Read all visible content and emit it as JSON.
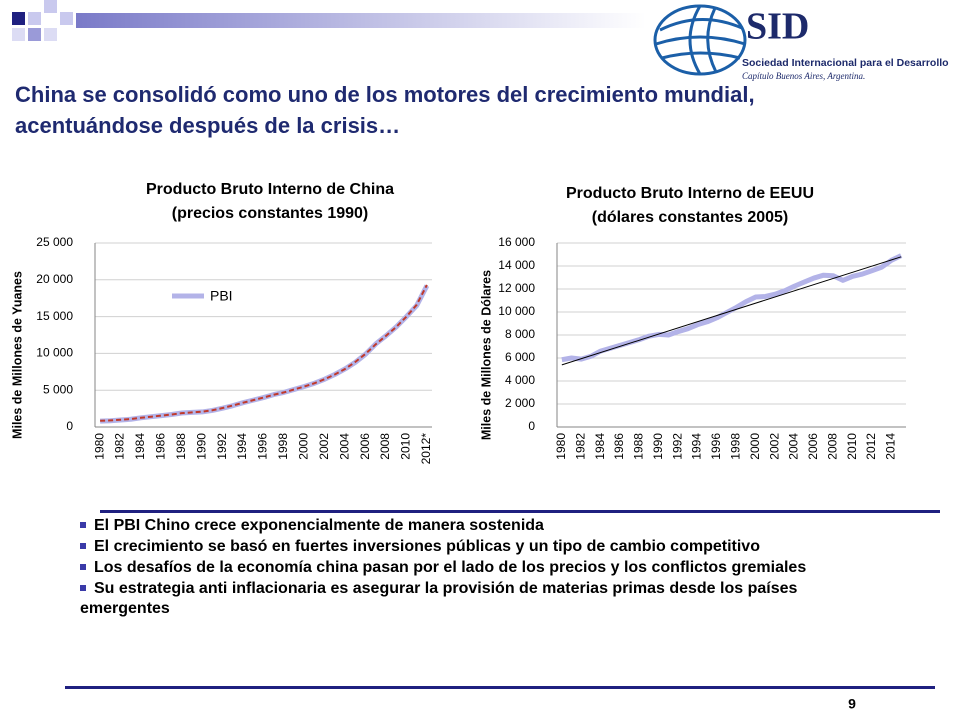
{
  "slide_title": [
    "China se consolidó como uno de los motores del crecimiento mundial,",
    "acentuándose después de la crisis…"
  ],
  "logo": {
    "name": "SID",
    "full_name": "Sociedad Internacional para el Desarrollo",
    "chapter": "Capítulo Buenos Aires, Argentina."
  },
  "bullets": [
    "El PBI Chino crece exponencialmente de manera sostenida",
    "El crecimiento se basó en fuertes inversiones públicas y un tipo de cambio competitivo",
    "Los desafíos de la economía china pasan por el lado de los precios y los conflictos gremiales",
    "Su estrategia anti inflacionaria es asegurar la provisión de materias primas desde los países emergentes"
  ],
  "page_number": "9",
  "chart_data": [
    {
      "type": "line",
      "title": "Producto Bruto Interno de China",
      "subtitle": "(precios constantes 1990)",
      "y_label": "Miles de Millones de Yuanes",
      "categories": [
        "1980",
        null,
        "1982",
        null,
        "1984",
        null,
        "1986",
        null,
        "1988",
        null,
        "1990",
        null,
        "1992",
        null,
        "1994",
        null,
        "1996",
        null,
        "1998",
        null,
        "2000",
        null,
        "2002",
        null,
        "2004",
        null,
        "2006",
        null,
        "2008",
        null,
        "2010",
        null,
        "2012*"
      ],
      "series": [
        {
          "name": "PBI",
          "color": "#b3b3e8",
          "values": [
            800,
            850,
            950,
            1050,
            1250,
            1400,
            1550,
            1700,
            1900,
            1980,
            2050,
            2250,
            2550,
            2900,
            3300,
            3650,
            4000,
            4400,
            4700,
            5100,
            5500,
            5950,
            6500,
            7150,
            7900,
            8800,
            9900,
            11300,
            12400,
            13600,
            15000,
            16500,
            19200
          ]
        }
      ],
      "trendline": {
        "color": "#c0392b",
        "dashed": true,
        "values": [
          850,
          900,
          980,
          1080,
          1250,
          1400,
          1550,
          1700,
          1880,
          1980,
          2080,
          2280,
          2580,
          2920,
          3300,
          3650,
          4000,
          4380,
          4700,
          5100,
          5500,
          5950,
          6500,
          7150,
          7900,
          8850,
          9950,
          11250,
          12400,
          13600,
          15000,
          16600,
          19300
        ]
      },
      "ylim": [
        0,
        25000
      ],
      "yticks": [
        0,
        {
          "value": 5000,
          "label": "5 000"
        },
        {
          "value": 10000,
          "label": "10 000"
        },
        {
          "value": 15000,
          "label": "15 000"
        },
        {
          "value": 20000,
          "label": "20 000"
        },
        {
          "value": 25000,
          "label": "25 000"
        }
      ],
      "grid": true,
      "legend": "upper left"
    },
    {
      "type": "line",
      "title": "Producto Bruto Interno de EEUU",
      "subtitle": "(dólares constantes 2005)",
      "y_label": "Miles de Millones de Dólares",
      "categories": [
        "1980",
        null,
        "1982",
        null,
        "1984",
        null,
        "1986",
        null,
        "1988",
        null,
        "1990",
        null,
        "1992",
        null,
        "1994",
        null,
        "1996",
        null,
        "1998",
        null,
        "2000",
        null,
        "2002",
        null,
        "2004",
        null,
        "2006",
        null,
        "2008",
        null,
        "2010",
        null,
        "2012",
        null,
        "2014",
        null
      ],
      "series": [
        {
          "color": "#b3b3e8",
          "values": [
            5850,
            6000,
            5900,
            6150,
            6600,
            6850,
            7100,
            7350,
            7600,
            7900,
            8050,
            8000,
            8300,
            8550,
            8900,
            9150,
            9500,
            9950,
            10400,
            10900,
            11300,
            11350,
            11550,
            11850,
            12250,
            12600,
            12950,
            13200,
            13150,
            12750,
            13100,
            13300,
            13600,
            13900,
            14500,
            14900
          ]
        }
      ],
      "trendline": {
        "color": "#000000",
        "dashed": false,
        "values": [
          5400,
          14800
        ]
      },
      "ylim": [
        0,
        16000
      ],
      "yticks": [
        0,
        {
          "value": 2000,
          "label": "2 000"
        },
        {
          "value": 4000,
          "label": "4 000"
        },
        {
          "value": 6000,
          "label": "6 000"
        },
        {
          "value": 8000,
          "label": "8 000"
        },
        {
          "value": 10000,
          "label": "10 000"
        },
        {
          "value": 12000,
          "label": "12 000"
        },
        {
          "value": 14000,
          "label": "14 000"
        },
        {
          "value": 16000,
          "label": "16 000"
        }
      ],
      "grid": true
    }
  ]
}
